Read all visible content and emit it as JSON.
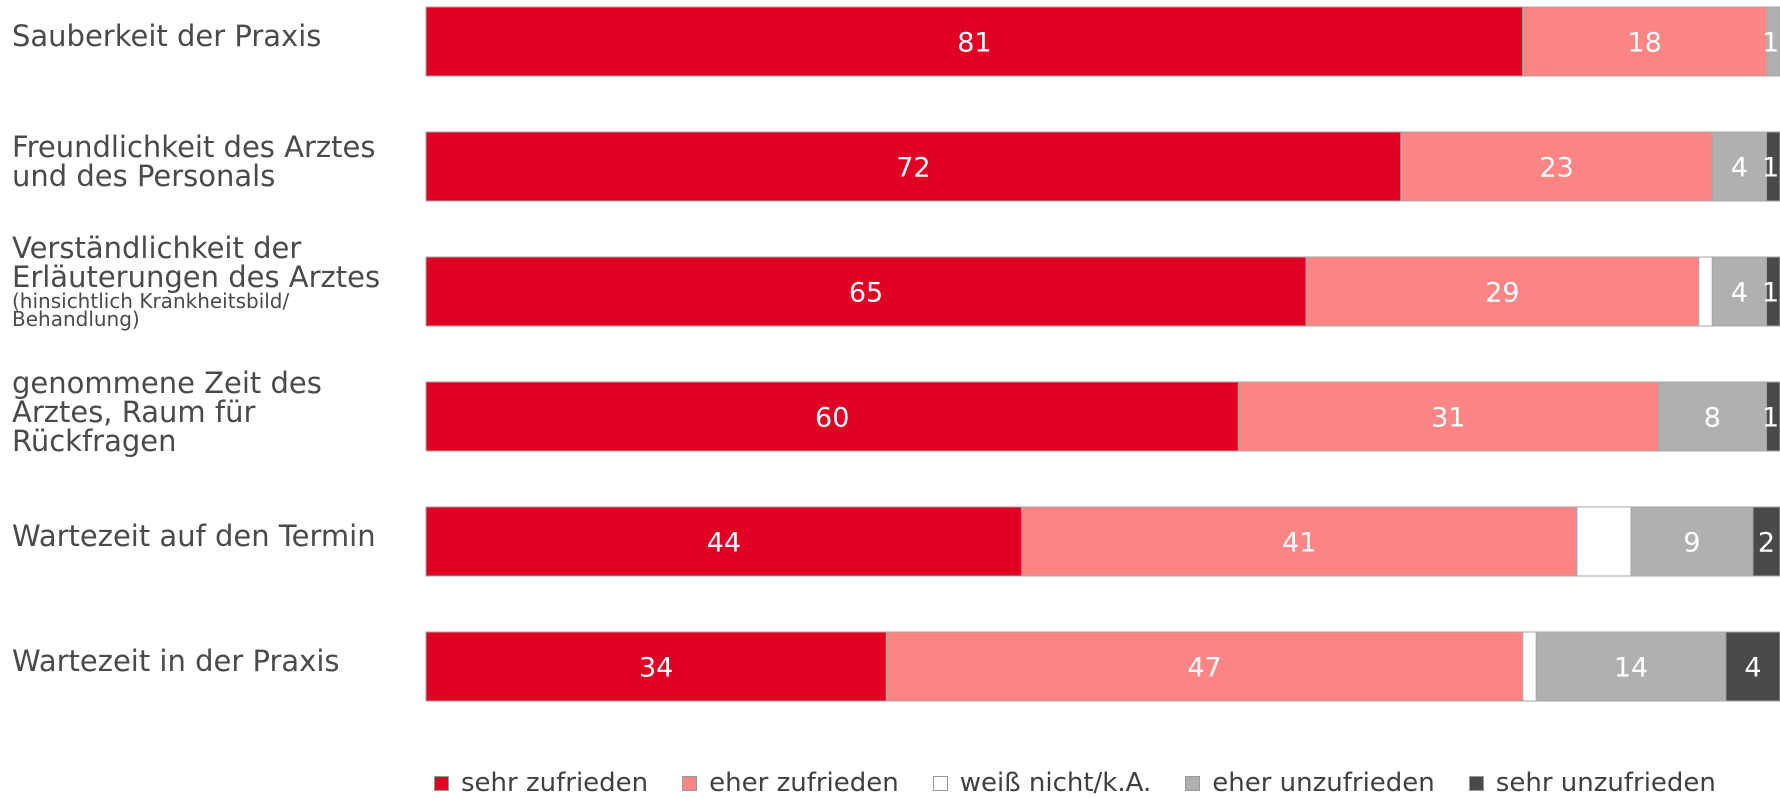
{
  "chart_data": {
    "type": "bar",
    "orientation": "horizontal",
    "stacked": true,
    "categories": [
      {
        "label": "Sauberkeit der Praxis",
        "note": ""
      },
      {
        "label": "Freundlichkeit des Arztes und des Personals",
        "note": ""
      },
      {
        "label": "Verständlichkeit der Erläuterungen des Arztes",
        "note": "(hinsichtlich Krankheitsbild/ Behandlung)"
      },
      {
        "label": "genommene Zeit des Arztes, Raum für Rückfragen",
        "note": ""
      },
      {
        "label": "Wartezeit auf den Termin",
        "note": ""
      },
      {
        "label": "Wartezeit in der Praxis",
        "note": ""
      }
    ],
    "series": [
      {
        "name": "sehr zufrieden",
        "color": "#e00024",
        "label_color": "#ffffff",
        "values": [
          81,
          72,
          65,
          60,
          44,
          34
        ],
        "labels": [
          "81",
          "72",
          "65",
          "60",
          "44",
          "34"
        ]
      },
      {
        "name": "eher zufrieden",
        "color": "#ff8585",
        "label_color": "#ffffff",
        "values": [
          18,
          23,
          29,
          31,
          41,
          47
        ],
        "labels": [
          "18",
          "23",
          "29",
          "31",
          "41",
          "47"
        ]
      },
      {
        "name": "weiß nicht/k.A.",
        "color": "#ffffff",
        "label_color": "#404040",
        "values": [
          0,
          0,
          1,
          0,
          4,
          1
        ],
        "labels": [
          "",
          "",
          "",
          "",
          "",
          ""
        ]
      },
      {
        "name": "eher unzufrieden",
        "color": "#b0b0b0",
        "label_color": "#ffffff",
        "values": [
          1,
          4,
          4,
          8,
          9,
          14
        ],
        "labels": [
          "1",
          "4",
          "4",
          "8",
          "9",
          "14"
        ]
      },
      {
        "name": "sehr unzufrieden",
        "color": "#4a4a4a",
        "label_color": "#ffffff",
        "values": [
          0,
          1,
          1,
          1,
          2,
          4
        ],
        "labels": [
          "",
          "1",
          "1",
          "1",
          "2",
          "4"
        ]
      }
    ],
    "xlim": [
      0,
      100
    ],
    "grid": false,
    "legend_position": "bottom"
  }
}
